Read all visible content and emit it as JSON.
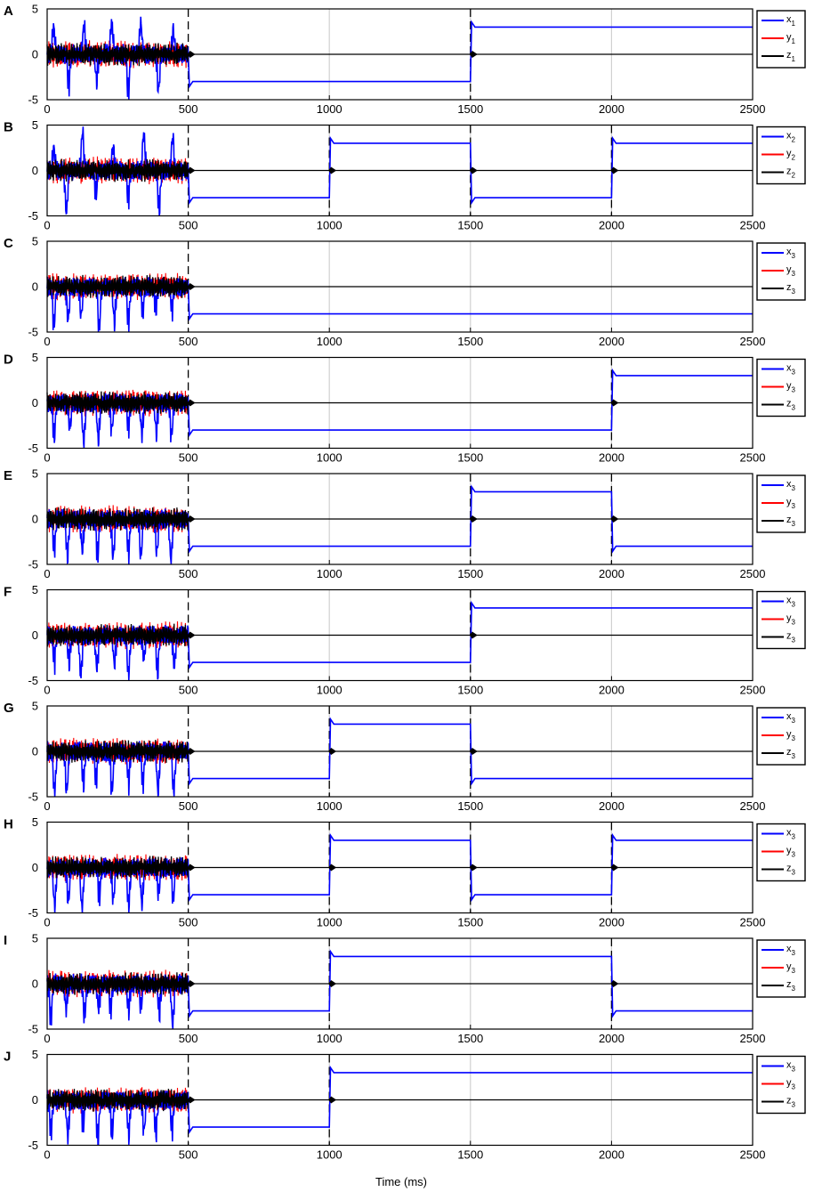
{
  "figure": {
    "xlabel": "Time (ms)"
  },
  "chart_data": [
    {
      "panel": "A",
      "type": "line",
      "x_range": [
        0,
        2500
      ],
      "ylim": [
        -5,
        5
      ],
      "xticks": [
        0,
        500,
        1000,
        1500,
        2000,
        2500
      ],
      "yticks": [
        5,
        0,
        -5
      ],
      "series": [
        {
          "name": "x1",
          "color": "#0000ff"
        },
        {
          "name": "y1",
          "color": "#ff0000"
        },
        {
          "name": "z1",
          "color": "#000000"
        }
      ],
      "x_levels": [
        [
          500,
          -3
        ],
        [
          1500,
          3
        ]
      ],
      "z_spikes": [
        500,
        1500
      ],
      "legend": {
        "main": [
          "x",
          "y",
          "z"
        ],
        "sub": [
          "1",
          "1",
          "1"
        ],
        "placement": "outside-right"
      }
    },
    {
      "panel": "B",
      "type": "line",
      "x_range": [
        0,
        2500
      ],
      "ylim": [
        -5,
        5
      ],
      "xticks": [
        0,
        500,
        1000,
        1500,
        2000,
        2500
      ],
      "yticks": [
        5,
        0,
        -5
      ],
      "series": [
        {
          "name": "x2",
          "color": "#0000ff"
        },
        {
          "name": "y2",
          "color": "#ff0000"
        },
        {
          "name": "z2",
          "color": "#000000"
        }
      ],
      "x_levels": [
        [
          500,
          -3
        ],
        [
          1000,
          3
        ],
        [
          1500,
          -3
        ],
        [
          2000,
          3
        ]
      ],
      "z_spikes": [
        500,
        1000,
        1500,
        2000
      ],
      "legend": {
        "main": [
          "x",
          "y",
          "z"
        ],
        "sub": [
          "2",
          "2",
          "2"
        ],
        "placement": "outside-right"
      }
    },
    {
      "panel": "C",
      "type": "line",
      "x_range": [
        0,
        2500
      ],
      "ylim": [
        -5,
        5
      ],
      "xticks": [
        0,
        500,
        1000,
        1500,
        2000,
        2500
      ],
      "yticks": [
        5,
        0,
        -5
      ],
      "series": [
        {
          "name": "x3",
          "color": "#0000ff"
        },
        {
          "name": "y3",
          "color": "#ff0000"
        },
        {
          "name": "z3",
          "color": "#000000"
        }
      ],
      "x_levels": [
        [
          500,
          -3
        ]
      ],
      "z_spikes": [
        500
      ],
      "legend": {
        "main": [
          "x",
          "y",
          "z"
        ],
        "sub": [
          "3",
          "3",
          "3"
        ],
        "placement": "outside-right"
      }
    },
    {
      "panel": "D",
      "type": "line",
      "x_range": [
        0,
        2500
      ],
      "ylim": [
        -5,
        5
      ],
      "xticks": [
        0,
        500,
        1000,
        1500,
        2000,
        2500
      ],
      "yticks": [
        5,
        0,
        -5
      ],
      "series": [
        {
          "name": "x3",
          "color": "#0000ff"
        },
        {
          "name": "y3",
          "color": "#ff0000"
        },
        {
          "name": "z3",
          "color": "#000000"
        }
      ],
      "x_levels": [
        [
          500,
          -3
        ],
        [
          2000,
          3
        ]
      ],
      "z_spikes": [
        500,
        2000
      ],
      "legend": {
        "main": [
          "x",
          "y",
          "z"
        ],
        "sub": [
          "3",
          "3",
          "3"
        ],
        "placement": "outside-right"
      }
    },
    {
      "panel": "E",
      "type": "line",
      "x_range": [
        0,
        2500
      ],
      "ylim": [
        -5,
        5
      ],
      "xticks": [
        0,
        500,
        1000,
        1500,
        2000,
        2500
      ],
      "yticks": [
        5,
        0,
        -5
      ],
      "series": [
        {
          "name": "x3",
          "color": "#0000ff"
        },
        {
          "name": "y3",
          "color": "#ff0000"
        },
        {
          "name": "z3",
          "color": "#000000"
        }
      ],
      "x_levels": [
        [
          500,
          -3
        ],
        [
          1500,
          3
        ],
        [
          2000,
          -3
        ]
      ],
      "z_spikes": [
        500,
        1500,
        2000
      ],
      "legend": {
        "main": [
          "x",
          "y",
          "z"
        ],
        "sub": [
          "3",
          "3",
          "3"
        ],
        "placement": "outside-right"
      }
    },
    {
      "panel": "F",
      "type": "line",
      "x_range": [
        0,
        2500
      ],
      "ylim": [
        -5,
        5
      ],
      "xticks": [
        0,
        500,
        1000,
        1500,
        2000,
        2500
      ],
      "yticks": [
        5,
        0,
        -5
      ],
      "series": [
        {
          "name": "x3",
          "color": "#0000ff"
        },
        {
          "name": "y3",
          "color": "#ff0000"
        },
        {
          "name": "z3",
          "color": "#000000"
        }
      ],
      "x_levels": [
        [
          500,
          -3
        ],
        [
          1500,
          3
        ]
      ],
      "z_spikes": [
        500,
        1500
      ],
      "legend": {
        "main": [
          "x",
          "y",
          "z"
        ],
        "sub": [
          "3",
          "3",
          "3"
        ],
        "placement": "outside-right"
      }
    },
    {
      "panel": "G",
      "type": "line",
      "x_range": [
        0,
        2500
      ],
      "ylim": [
        -5,
        5
      ],
      "xticks": [
        0,
        500,
        1000,
        1500,
        2000,
        2500
      ],
      "yticks": [
        5,
        0,
        -5
      ],
      "series": [
        {
          "name": "x3",
          "color": "#0000ff"
        },
        {
          "name": "y3",
          "color": "#ff0000"
        },
        {
          "name": "z3",
          "color": "#000000"
        }
      ],
      "x_levels": [
        [
          500,
          -3
        ],
        [
          1000,
          3
        ],
        [
          1500,
          -3
        ]
      ],
      "z_spikes": [
        500,
        1000,
        1500
      ],
      "legend": {
        "main": [
          "x",
          "y",
          "z"
        ],
        "sub": [
          "3",
          "3",
          "3"
        ],
        "placement": "outside-right"
      }
    },
    {
      "panel": "H",
      "type": "line",
      "x_range": [
        0,
        2500
      ],
      "ylim": [
        -5,
        5
      ],
      "xticks": [
        0,
        500,
        1000,
        1500,
        2000,
        2500
      ],
      "yticks": [
        5,
        0,
        -5
      ],
      "series": [
        {
          "name": "x3",
          "color": "#0000ff"
        },
        {
          "name": "y3",
          "color": "#ff0000"
        },
        {
          "name": "z3",
          "color": "#000000"
        }
      ],
      "x_levels": [
        [
          500,
          -3
        ],
        [
          1000,
          3
        ],
        [
          1500,
          -3
        ],
        [
          2000,
          3
        ]
      ],
      "z_spikes": [
        500,
        1000,
        1500,
        2000
      ],
      "legend": {
        "main": [
          "x",
          "y",
          "z"
        ],
        "sub": [
          "3",
          "3",
          "3"
        ],
        "placement": "outside-right"
      }
    },
    {
      "panel": "I",
      "type": "line",
      "x_range": [
        0,
        2500
      ],
      "ylim": [
        -5,
        5
      ],
      "xticks": [
        0,
        500,
        1000,
        1500,
        2000,
        2500
      ],
      "yticks": [
        5,
        0,
        -5
      ],
      "series": [
        {
          "name": "x3",
          "color": "#0000ff"
        },
        {
          "name": "y3",
          "color": "#ff0000"
        },
        {
          "name": "z3",
          "color": "#000000"
        }
      ],
      "x_levels": [
        [
          500,
          -3
        ],
        [
          1000,
          3
        ],
        [
          2000,
          -3
        ]
      ],
      "z_spikes": [
        500,
        1000,
        2000
      ],
      "legend": {
        "main": [
          "x",
          "y",
          "z"
        ],
        "sub": [
          "3",
          "3",
          "3"
        ],
        "placement": "outside-right"
      }
    },
    {
      "panel": "J",
      "type": "line",
      "x_range": [
        0,
        2500
      ],
      "ylim": [
        -5,
        5
      ],
      "xticks": [
        0,
        500,
        1000,
        1500,
        2000,
        2500
      ],
      "yticks": [
        5,
        0,
        -5
      ],
      "series": [
        {
          "name": "x3",
          "color": "#0000ff"
        },
        {
          "name": "y3",
          "color": "#ff0000"
        },
        {
          "name": "z3",
          "color": "#000000"
        }
      ],
      "x_levels": [
        [
          500,
          -3
        ],
        [
          1000,
          3
        ]
      ],
      "z_spikes": [
        500,
        1000
      ],
      "legend": {
        "main": [
          "x",
          "y",
          "z"
        ],
        "sub": [
          "3",
          "3",
          "3"
        ],
        "placement": "outside-right"
      }
    }
  ]
}
